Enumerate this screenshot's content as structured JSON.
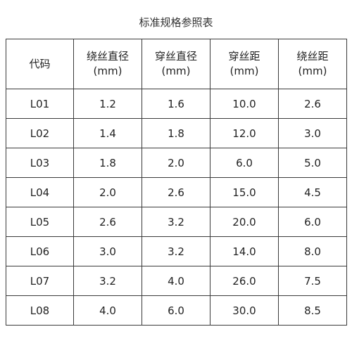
{
  "title": "标准规格参照表",
  "table": {
    "headers": [
      {
        "name": "代码",
        "unit": ""
      },
      {
        "name": "绕丝直径",
        "unit": "(mm)"
      },
      {
        "name": "穿丝直径",
        "unit": "(mm)"
      },
      {
        "name": "穿丝距",
        "unit": "(mm)"
      },
      {
        "name": "绕丝距",
        "unit": "(mm)"
      }
    ],
    "rows": [
      [
        "L01",
        "1.2",
        "1.6",
        "10.0",
        "2.6"
      ],
      [
        "L02",
        "1.4",
        "1.8",
        "12.0",
        "3.0"
      ],
      [
        "L03",
        "1.8",
        "2.0",
        "6.0",
        "5.0"
      ],
      [
        "L04",
        "2.0",
        "2.6",
        "15.0",
        "4.5"
      ],
      [
        "L05",
        "2.6",
        "3.2",
        "20.0",
        "6.0"
      ],
      [
        "L06",
        "3.0",
        "3.2",
        "14.0",
        "8.0"
      ],
      [
        "L07",
        "3.2",
        "4.0",
        "26.0",
        "7.5"
      ],
      [
        "L08",
        "4.0",
        "6.0",
        "30.0",
        "8.5"
      ]
    ]
  }
}
